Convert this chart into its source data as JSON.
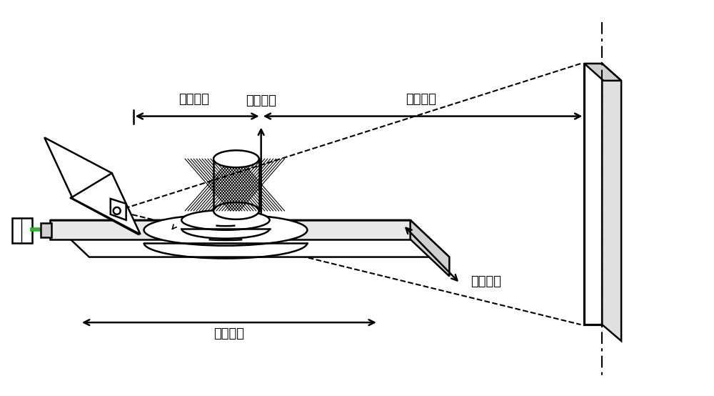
{
  "bg_color": "#ffffff",
  "line_color": "#000000",
  "green_color": "#00cc00",
  "title_shengjiang": "升降运动",
  "title_juli1": "距离调整",
  "title_juli2": "距离调整",
  "title_zongxiang": "纵向运动",
  "title_hengxiang": "横向运动",
  "font_size": 13,
  "figsize": [
    10.0,
    5.54
  ],
  "dpi": 100
}
